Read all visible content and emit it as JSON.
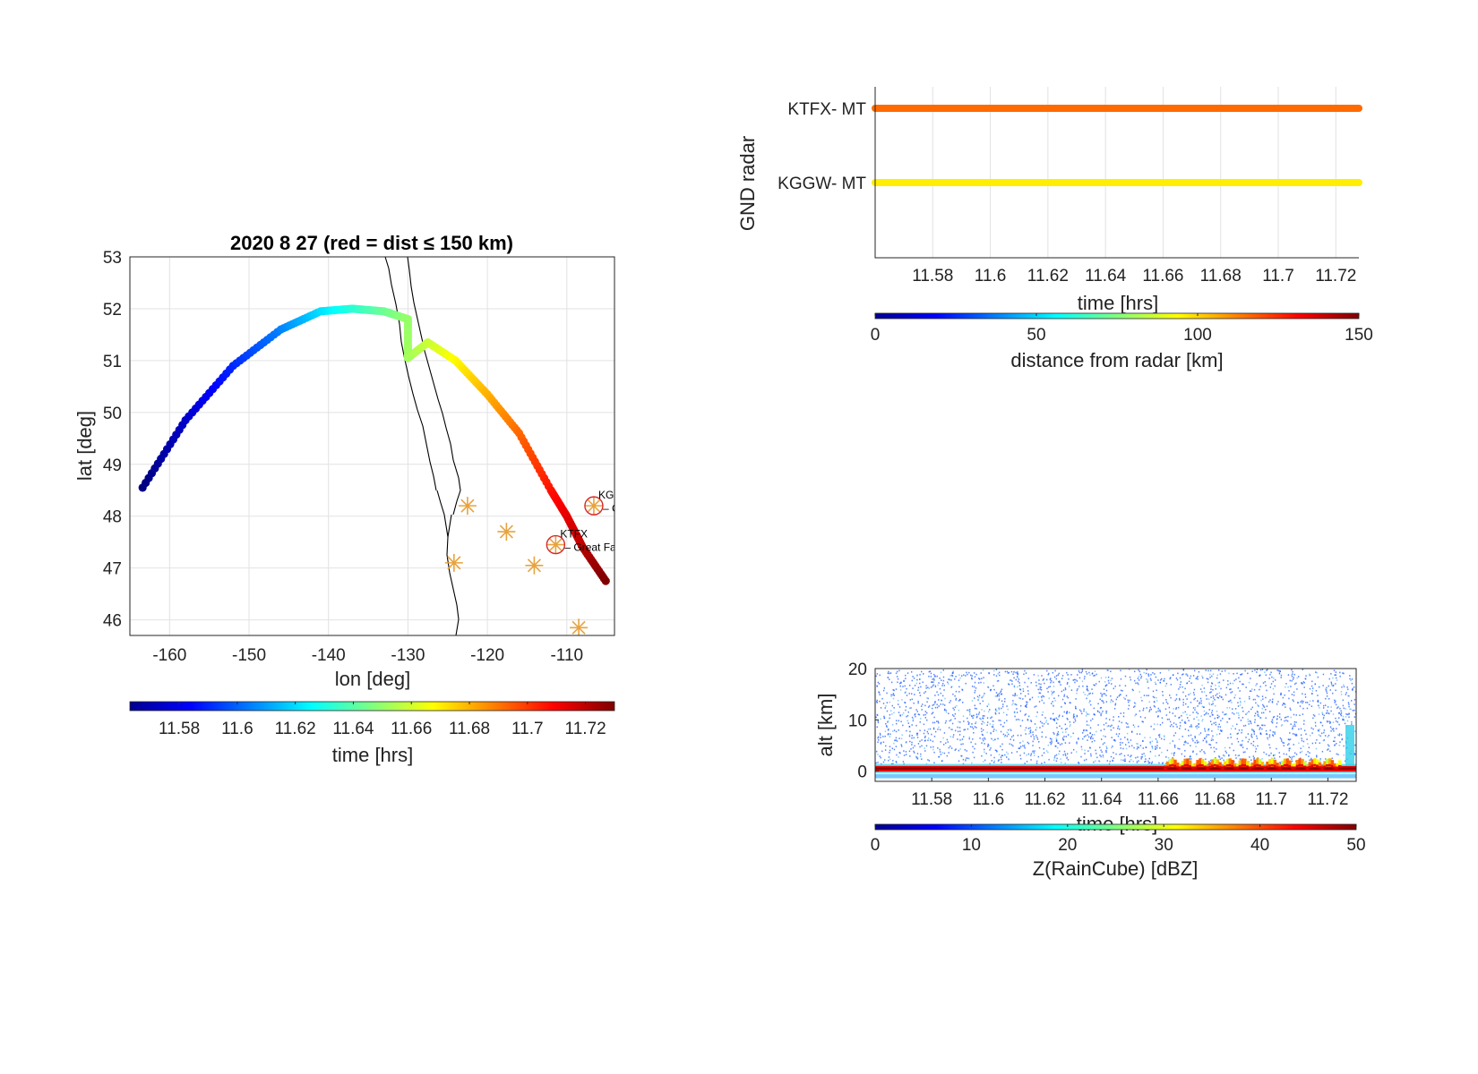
{
  "chart_data": [
    {
      "type": "scatter",
      "title": "2020     8    27  (red = dist ≤ 150 km)",
      "xlabel": "lon  [deg]",
      "ylabel": "lat  [deg]",
      "xlim": [
        -165,
        -104
      ],
      "ylim": [
        45.7,
        53
      ],
      "xticks": [
        -160,
        -150,
        -140,
        -130,
        -120,
        -110
      ],
      "xtick_labels": [
        "-160",
        "-150",
        "-140",
        "-130",
        "-120",
        "-110"
      ],
      "yticks": [
        46,
        47,
        48,
        49,
        50,
        51,
        52,
        53
      ],
      "ytick_labels": [
        "46",
        "47",
        "48",
        "49",
        "50",
        "51",
        "52",
        "53"
      ],
      "grid": true,
      "track": {
        "time_range": [
          11.563,
          11.73
        ],
        "lon": [
          -163.4,
          -158,
          -152,
          -146,
          -141,
          -137,
          -133,
          -130,
          -130,
          -127.5,
          -124,
          -120,
          -116,
          -112,
          -110,
          -108,
          -105.1
        ],
        "lat": [
          48.55,
          49.85,
          50.9,
          51.6,
          51.95,
          52.0,
          51.95,
          51.8,
          51.05,
          51.35,
          51.0,
          50.35,
          49.6,
          48.5,
          48.0,
          47.4,
          46.75
        ],
        "t": [
          11.563,
          11.575,
          11.59,
          11.605,
          11.62,
          11.632,
          11.643,
          11.65,
          11.652,
          11.658,
          11.668,
          11.68,
          11.692,
          11.706,
          11.713,
          11.72,
          11.73
        ]
      },
      "radar_sites": [
        {
          "id": "KGGW",
          "name": "Glasgow, MT",
          "lon": -106.6,
          "lat": 48.2,
          "highlight": true
        },
        {
          "id": "KTFX",
          "name": "Great Falls, MT",
          "lon": -111.4,
          "lat": 47.45,
          "highlight": true
        },
        {
          "id": "",
          "name": "",
          "lon": -122.5,
          "lat": 48.2,
          "highlight": false
        },
        {
          "id": "",
          "name": "",
          "lon": -117.6,
          "lat": 47.7,
          "highlight": false
        },
        {
          "id": "",
          "name": "",
          "lon": -124.2,
          "lat": 47.1,
          "highlight": false
        },
        {
          "id": "",
          "name": "",
          "lon": -114.1,
          "lat": 47.05,
          "highlight": false
        },
        {
          "id": "",
          "name": "",
          "lon": -108.5,
          "lat": 45.85,
          "highlight": false
        }
      ],
      "colorbar": {
        "label": "time  [hrs]",
        "ticks": [
          11.58,
          11.6,
          11.62,
          11.64,
          11.66,
          11.68,
          11.7,
          11.72
        ],
        "tick_labels": [
          "11.58",
          "11.6",
          "11.62",
          "11.64",
          "11.66",
          "11.68",
          "11.7",
          "11.72"
        ],
        "range": [
          11.563,
          11.73
        ],
        "colormap": "jet"
      }
    },
    {
      "type": "scatter",
      "title": "",
      "xlabel": "time [hrs]",
      "ylabel": "GND radar",
      "xlim": [
        11.56,
        11.728
      ],
      "xticks": [
        11.58,
        11.6,
        11.62,
        11.64,
        11.66,
        11.68,
        11.7,
        11.72
      ],
      "xtick_labels": [
        "11.58",
        "11.6",
        "11.62",
        "11.64",
        "11.66",
        "11.68",
        "11.7",
        "11.72"
      ],
      "grid": true,
      "categories": [
        "KTFX-  MT",
        "KGGW-  MT"
      ],
      "series": [
        {
          "category": "KTFX-  MT",
          "x_range": [
            11.56,
            11.728
          ],
          "color": "#ff6a00"
        },
        {
          "category": "KGGW-  MT",
          "x_range": [
            11.56,
            11.728
          ],
          "color": "#ffee00"
        }
      ],
      "colorbar": {
        "label": "distance from radar [km]",
        "ticks": [
          0,
          50,
          100,
          150
        ],
        "tick_labels": [
          "0",
          "50",
          "100",
          "150"
        ],
        "range": [
          0,
          150
        ],
        "colormap": "jet"
      }
    },
    {
      "type": "heatmap",
      "title": "",
      "xlabel": "time [hrs]",
      "ylabel": "alt [km]",
      "xlim": [
        11.56,
        11.73
      ],
      "ylim": [
        -2,
        20
      ],
      "xticks": [
        11.58,
        11.6,
        11.62,
        11.64,
        11.66,
        11.68,
        11.7,
        11.72
      ],
      "xtick_labels": [
        "11.58",
        "11.6",
        "11.62",
        "11.64",
        "11.66",
        "11.68",
        "11.7",
        "11.72"
      ],
      "yticks": [
        0,
        10,
        20
      ],
      "ytick_labels": [
        "0",
        "10",
        "20"
      ],
      "features": {
        "surface_band_alt": 0.5,
        "surface_band_dbz": 45,
        "precip_start_time": 11.662,
        "precip_top_alt": 2.5,
        "precip_max_dbz": 40
      },
      "colorbar": {
        "label": "Z(RainCube) [dBZ]",
        "ticks": [
          0,
          10,
          20,
          30,
          40,
          50
        ],
        "tick_labels": [
          "0",
          "10",
          "20",
          "30",
          "40",
          "50"
        ],
        "range": [
          0,
          50
        ],
        "colormap": "jet"
      }
    }
  ]
}
